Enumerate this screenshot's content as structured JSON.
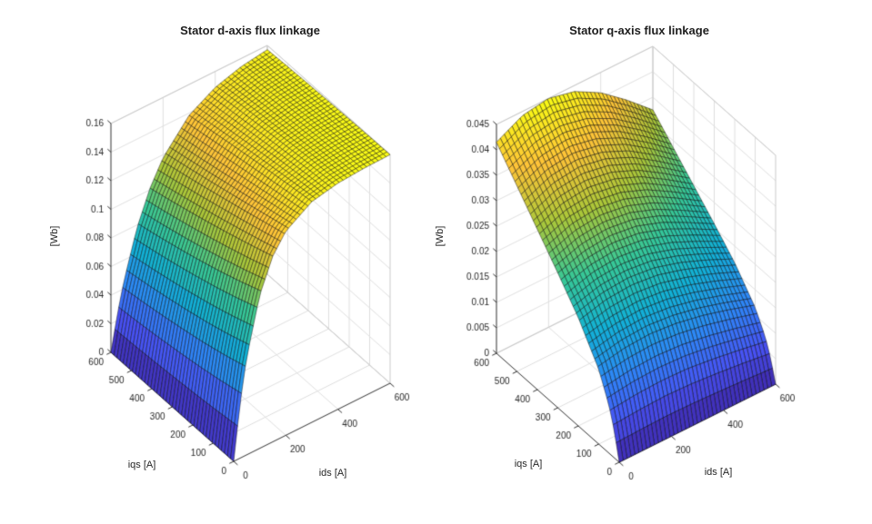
{
  "figure": {
    "background": "#ffffff",
    "axis_color": "#303030",
    "tick_label_color": "#262626",
    "grid_color": "#dedede",
    "box_edge_color": "#c9c9c9",
    "mesh_edge_color": "#000000"
  },
  "colormap": {
    "name": "parula",
    "stops": [
      {
        "t": 0.0,
        "c": "#3e26a8"
      },
      {
        "t": 0.143,
        "c": "#4852f4"
      },
      {
        "t": 0.286,
        "c": "#2e87f7"
      },
      {
        "t": 0.429,
        "c": "#12b1d6"
      },
      {
        "t": 0.571,
        "c": "#37c897"
      },
      {
        "t": 0.714,
        "c": "#abc739"
      },
      {
        "t": 0.857,
        "c": "#fec338"
      },
      {
        "t": 1.0,
        "c": "#f9fb15"
      }
    ]
  },
  "chart_data": [
    {
      "type": "surface3d",
      "title": "Stator d-axis flux linkage",
      "xlabel": "ids [A]",
      "ylabel": "iqs [A]",
      "zlabel": "[Wb]",
      "x_range": [
        0,
        600
      ],
      "y_range": [
        0,
        600
      ],
      "z_range": [
        0,
        0.16
      ],
      "x_ticks": {
        "values": [
          0,
          200,
          400,
          600
        ],
        "labels": [
          "0",
          "200",
          "400",
          "600"
        ]
      },
      "y_ticks": {
        "values": [
          0,
          100,
          200,
          300,
          400,
          500,
          600
        ],
        "labels": [
          "0",
          "100",
          "200",
          "300",
          "400",
          "500",
          "600"
        ]
      },
      "z_ticks": {
        "values": [
          0,
          0.02,
          0.04,
          0.06,
          0.08,
          0.1,
          0.12,
          0.14,
          0.16
        ],
        "labels": [
          "0",
          "0.02",
          "0.04",
          "0.06",
          "0.08",
          "0.1",
          "0.12",
          "0.14",
          "0.16"
        ]
      },
      "grid": {
        "x": [
          0,
          25,
          50,
          100,
          150,
          200,
          300,
          400,
          500,
          600
        ],
        "y": [
          0,
          100,
          200,
          300,
          400,
          500,
          600
        ],
        "z": [
          [
            0,
            0.0389,
            0.0682,
            0.1073,
            0.1298,
            0.1427,
            0.1543,
            0.1581,
            0.1594,
            0.1598
          ],
          [
            0,
            0.0354,
            0.0629,
            0.1011,
            0.1243,
            0.1384,
            0.152,
            0.1571,
            0.1589,
            0.1596
          ],
          [
            0,
            0.0325,
            0.0584,
            0.0955,
            0.1191,
            0.134,
            0.1495,
            0.1558,
            0.1583,
            0.1593
          ],
          [
            0,
            0.0301,
            0.0546,
            0.0905,
            0.1142,
            0.1298,
            0.1469,
            0.1543,
            0.1575,
            0.1589
          ],
          [
            0,
            0.0279,
            0.0512,
            0.0859,
            0.1096,
            0.1256,
            0.1441,
            0.1526,
            0.1566,
            0.1584
          ],
          [
            0,
            0.0261,
            0.0481,
            0.0817,
            0.1052,
            0.1217,
            0.1412,
            0.1508,
            0.1555,
            0.1578
          ],
          [
            0,
            0.0246,
            0.0454,
            0.0779,
            0.1011,
            0.1178,
            0.1384,
            0.1488,
            0.1543,
            0.157
          ]
        ]
      }
    },
    {
      "type": "surface3d",
      "title": "Stator q-axis flux linkage",
      "xlabel": "ids [A]",
      "ylabel": "iqs [A]",
      "zlabel": "[Wb]",
      "x_range": [
        0,
        600
      ],
      "y_range": [
        0,
        600
      ],
      "z_range": [
        0,
        0.045
      ],
      "x_ticks": {
        "values": [
          0,
          200,
          400,
          600
        ],
        "labels": [
          "0",
          "200",
          "400",
          "600"
        ]
      },
      "y_ticks": {
        "values": [
          0,
          100,
          200,
          300,
          400,
          500,
          600
        ],
        "labels": [
          "0",
          "100",
          "200",
          "300",
          "400",
          "500",
          "600"
        ]
      },
      "z_ticks": {
        "values": [
          0,
          0.005,
          0.01,
          0.015,
          0.02,
          0.025,
          0.03,
          0.035,
          0.04,
          0.045
        ],
        "labels": [
          "0",
          "0.005",
          "0.01",
          "0.015",
          "0.02",
          "0.025",
          "0.03",
          "0.035",
          "0.04",
          "0.045"
        ]
      },
      "grid": {
        "x": [
          0,
          100,
          200,
          300,
          400,
          500,
          600
        ],
        "y": [
          0,
          25,
          50,
          100,
          200,
          300,
          400,
          500,
          600
        ],
        "z": [
          [
            0,
            0,
            0,
            0,
            0,
            0,
            0
          ],
          [
            0.0055,
            0.0058,
            0.006,
            0.0058,
            0.0054,
            0.0049,
            0.0043
          ],
          [
            0.0094,
            0.01,
            0.0102,
            0.01,
            0.0093,
            0.0084,
            0.0074
          ],
          [
            0.0147,
            0.0157,
            0.016,
            0.0155,
            0.0145,
            0.0131,
            0.0115
          ],
          [
            0.0213,
            0.0227,
            0.0231,
            0.0225,
            0.021,
            0.019,
            0.0167
          ],
          [
            0.0265,
            0.0282,
            0.0287,
            0.028,
            0.0262,
            0.0236,
            0.0208
          ],
          [
            0.0315,
            0.0336,
            0.0342,
            0.0333,
            0.0312,
            0.0281,
            0.0247
          ],
          [
            0.0365,
            0.0389,
            0.0396,
            0.0385,
            0.0361,
            0.0326,
            0.0286
          ],
          [
            0.0415,
            0.0442,
            0.045,
            0.0438,
            0.041,
            0.037,
            0.0325
          ]
        ]
      }
    }
  ]
}
